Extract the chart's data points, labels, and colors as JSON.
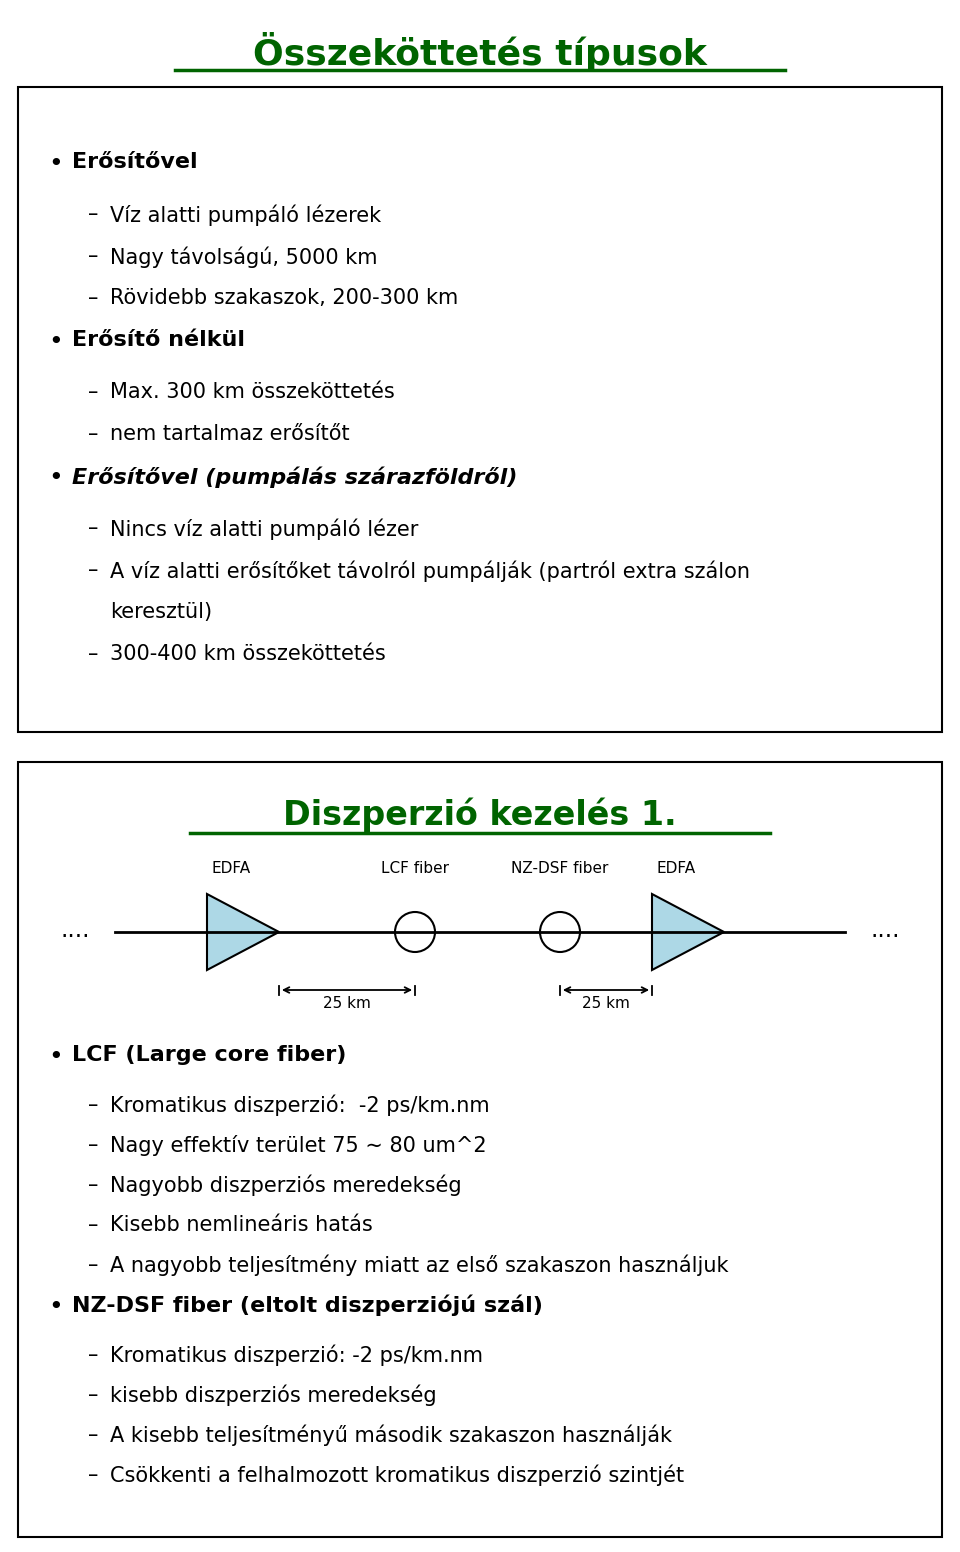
{
  "title": "Összeköttetés típusok",
  "title_color": "#006400",
  "bg_color": "#ffffff",
  "border_color": "#000000",
  "section1_bullets": [
    {
      "level": 0,
      "text": "Erősítővel",
      "style": "bold"
    },
    {
      "level": 1,
      "text": "Víz alatti pumpáló lézerek",
      "style": "normal"
    },
    {
      "level": 1,
      "text": "Nagy távolságú, 5000 km",
      "style": "normal"
    },
    {
      "level": 1,
      "text": "Rövidebb szakaszok, 200-300 km",
      "style": "normal"
    },
    {
      "level": 0,
      "text": "Erősítő nélkül",
      "style": "bold"
    },
    {
      "level": 1,
      "text": "Max. 300 km összeköttetés",
      "style": "normal"
    },
    {
      "level": 1,
      "text": "nem tartalmaz erősítőt",
      "style": "normal"
    },
    {
      "level": 0,
      "text": "Erősítővel (pumpálás szárazföldről)",
      "style": "bolditalic"
    },
    {
      "level": 1,
      "text": "Nincs víz alatti pumpáló lézer",
      "style": "normal"
    },
    {
      "level": 1,
      "text": "A víz alatti erősítőket távolról pumpálják (partról extra szálon keresztül)",
      "style": "normal",
      "wrap": true
    },
    {
      "level": 1,
      "text": "300-400 km összeköttetés",
      "style": "normal"
    }
  ],
  "section2_title": "Diszperzió kezelés 1.",
  "section2_title_color": "#006400",
  "section2_bullets": [
    {
      "level": 0,
      "text": "LCF (Large core fiber)",
      "style": "bold"
    },
    {
      "level": 1,
      "text": "Kromatikus diszperzió:  -2 ps/km.nm",
      "style": "normal"
    },
    {
      "level": 1,
      "text": "Nagy effektív terület 75 ∼ 80 um^2",
      "style": "normal"
    },
    {
      "level": 1,
      "text": "Nagyobb diszperziós meredekség",
      "style": "normal"
    },
    {
      "level": 1,
      "text": "Kisebb nemlineáris hatás",
      "style": "normal"
    },
    {
      "level": 1,
      "text": "A nagyobb teljesítmény miatt az első szakaszon használjuk",
      "style": "normal"
    },
    {
      "level": 0,
      "text": "NZ-DSF fiber (eltolt diszperziójú szál)",
      "style": "bold"
    },
    {
      "level": 1,
      "text": "Kromatikus diszperzió: -2 ps/km.nm",
      "style": "normal"
    },
    {
      "level": 1,
      "text": "kisebb diszperziós meredekség",
      "style": "normal"
    },
    {
      "level": 1,
      "text": "A kisebb teljesítményű második szakaszon használják",
      "style": "normal"
    },
    {
      "level": 1,
      "text": "Csökkenti a felhalmozott kromatikus diszperzió szintjét",
      "style": "normal"
    }
  ],
  "text_color": "#000000",
  "font_size_title": 26,
  "font_size_section2_title": 24,
  "font_size_body": 15,
  "diagram_color": "#add8e6",
  "diagram_color_dark": "#87ceeb"
}
